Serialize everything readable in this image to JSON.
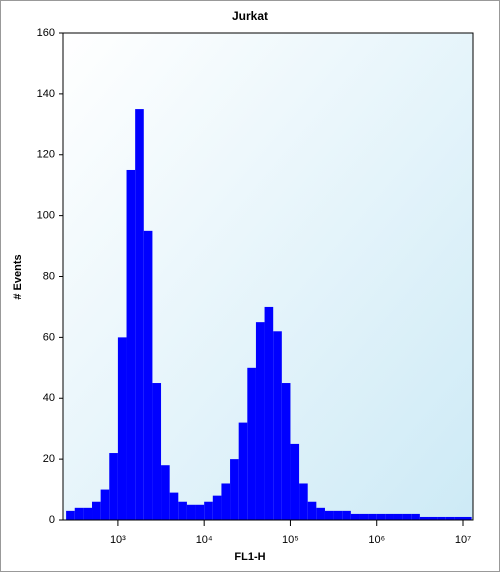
{
  "chart_data": {
    "type": "histogram",
    "title": "Jurkat",
    "x_label": "FL1-H",
    "y_label": "# Events",
    "color": "#0000ff",
    "xscale": "log",
    "bins": [
      251,
      316,
      398,
      501,
      631,
      794,
      1000,
      1259,
      1585,
      1995,
      2512,
      3162,
      3981,
      5012,
      6310,
      7943,
      10000,
      12589,
      15849,
      19953,
      25119,
      31623,
      39811,
      50119,
      63096,
      79433,
      100000,
      125893,
      158489,
      199526,
      251189,
      316228,
      398107,
      501187,
      630957,
      794328,
      1000000,
      1258925,
      1584893,
      1995262,
      2511886,
      3162278,
      3981072,
      5011872,
      6309573,
      7943282,
      10000000,
      12589254
    ],
    "values": [
      3,
      4,
      4,
      6,
      10,
      22,
      60,
      115,
      135,
      95,
      45,
      18,
      9,
      6,
      5,
      5,
      6,
      8,
      12,
      20,
      32,
      50,
      65,
      70,
      62,
      45,
      25,
      12,
      6,
      4,
      3,
      3,
      3,
      2,
      2,
      2,
      2,
      2,
      2,
      2,
      2,
      1,
      1,
      1,
      1,
      1,
      1
    ],
    "xlim": [
      231,
      13060000
    ],
    "ylim": [
      0,
      160
    ],
    "xticks": [
      {
        "value": 1000,
        "label": "10³"
      },
      {
        "value": 10000,
        "label": "10⁴"
      },
      {
        "value": 100000,
        "label": "10⁵"
      },
      {
        "value": 1000000,
        "label": "10⁶"
      },
      {
        "value": 10000000,
        "label": "10⁷"
      }
    ],
    "yticks": [
      0,
      20,
      40,
      60,
      80,
      100,
      120,
      140,
      160
    ]
  }
}
